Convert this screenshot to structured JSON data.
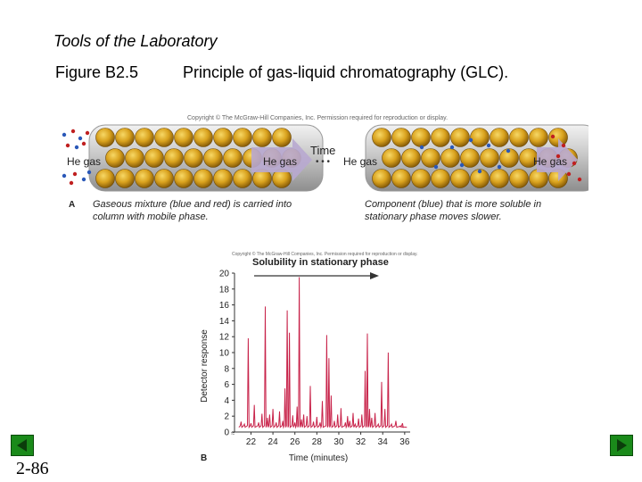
{
  "slide": {
    "title": "Tools of the Laboratory",
    "figure_label": "Figure B2.5",
    "caption": "Principle of gas-liquid chromatography (GLC).",
    "page_number": "2-86"
  },
  "panel_a": {
    "copyright": "Copyright © The McGraw-Hill Companies, Inc. Permission required for reproduction or display.",
    "panel_letter": "A",
    "he_gas_label": "He gas",
    "time_label": "Time",
    "time_dots": "• • •",
    "left_note": "Gaseous mixture (blue and red) is carried into column with mobile phase.",
    "right_note": "Component (blue) that is more soluble in stationary phase moves slower.",
    "colors": {
      "bead": "#d9a21e",
      "tube": "#c8c8c8",
      "arrow": "#b8a8d0",
      "blue_molecule": "#2a58b8",
      "red_molecule": "#c02020"
    }
  },
  "panel_b": {
    "copyright": "Copyright © The McGraw-Hill Companies, Inc. Permission required for reproduction or display.",
    "panel_letter": "B",
    "solubility_label": "Solubility in stationary phase",
    "axis_break": "≈",
    "chart_data": {
      "type": "line",
      "xlabel": "Time (minutes)",
      "ylabel": "Detector response",
      "xlim": [
        20.5,
        36.5
      ],
      "ylim": [
        0,
        20
      ],
      "x_ticks": [
        22,
        24,
        26,
        28,
        30,
        32,
        34,
        36
      ],
      "y_ticks": [
        0,
        2,
        4,
        6,
        8,
        10,
        12,
        14,
        16,
        18,
        20
      ],
      "line_color": "#c8234a",
      "baseline": 0.6,
      "peaks": [
        {
          "x": 21.1,
          "y": 1.3
        },
        {
          "x": 21.4,
          "y": 1.0
        },
        {
          "x": 21.75,
          "y": 11.8
        },
        {
          "x": 22.0,
          "y": 1.1
        },
        {
          "x": 22.3,
          "y": 3.4
        },
        {
          "x": 22.7,
          "y": 1.2
        },
        {
          "x": 23.0,
          "y": 2.3
        },
        {
          "x": 23.3,
          "y": 15.8
        },
        {
          "x": 23.5,
          "y": 1.8
        },
        {
          "x": 23.7,
          "y": 2.2
        },
        {
          "x": 24.0,
          "y": 2.9
        },
        {
          "x": 24.3,
          "y": 1.2
        },
        {
          "x": 24.6,
          "y": 2.6
        },
        {
          "x": 24.9,
          "y": 1.4
        },
        {
          "x": 25.1,
          "y": 5.5
        },
        {
          "x": 25.3,
          "y": 15.3
        },
        {
          "x": 25.5,
          "y": 12.5
        },
        {
          "x": 25.8,
          "y": 2.1
        },
        {
          "x": 26.0,
          "y": 1.2
        },
        {
          "x": 26.2,
          "y": 3.2
        },
        {
          "x": 26.4,
          "y": 19.5
        },
        {
          "x": 26.6,
          "y": 1.6
        },
        {
          "x": 26.8,
          "y": 2.2
        },
        {
          "x": 27.1,
          "y": 2.0
        },
        {
          "x": 27.4,
          "y": 5.8
        },
        {
          "x": 27.7,
          "y": 1.3
        },
        {
          "x": 28.0,
          "y": 1.9
        },
        {
          "x": 28.3,
          "y": 1.2
        },
        {
          "x": 28.5,
          "y": 3.9
        },
        {
          "x": 28.9,
          "y": 12.2
        },
        {
          "x": 29.1,
          "y": 9.3
        },
        {
          "x": 29.3,
          "y": 4.6
        },
        {
          "x": 29.6,
          "y": 1.4
        },
        {
          "x": 29.9,
          "y": 2.2
        },
        {
          "x": 30.2,
          "y": 3.0
        },
        {
          "x": 30.6,
          "y": 1.2
        },
        {
          "x": 30.8,
          "y": 2.0
        },
        {
          "x": 31.0,
          "y": 1.4
        },
        {
          "x": 31.3,
          "y": 2.4
        },
        {
          "x": 31.5,
          "y": 1.0
        },
        {
          "x": 31.8,
          "y": 1.7
        },
        {
          "x": 32.1,
          "y": 2.2
        },
        {
          "x": 32.4,
          "y": 7.7
        },
        {
          "x": 32.6,
          "y": 12.4
        },
        {
          "x": 32.8,
          "y": 2.9
        },
        {
          "x": 33.0,
          "y": 1.8
        },
        {
          "x": 33.3,
          "y": 2.4
        },
        {
          "x": 33.6,
          "y": 1.0
        },
        {
          "x": 33.9,
          "y": 6.3
        },
        {
          "x": 34.2,
          "y": 2.9
        },
        {
          "x": 34.5,
          "y": 10.0
        },
        {
          "x": 34.8,
          "y": 1.0
        },
        {
          "x": 35.2,
          "y": 1.4
        },
        {
          "x": 35.8,
          "y": 1.1
        }
      ]
    }
  },
  "nav": {
    "prev_icon": "triangle-left-icon",
    "next_icon": "triangle-right-icon",
    "color": "#1a8a1a"
  }
}
